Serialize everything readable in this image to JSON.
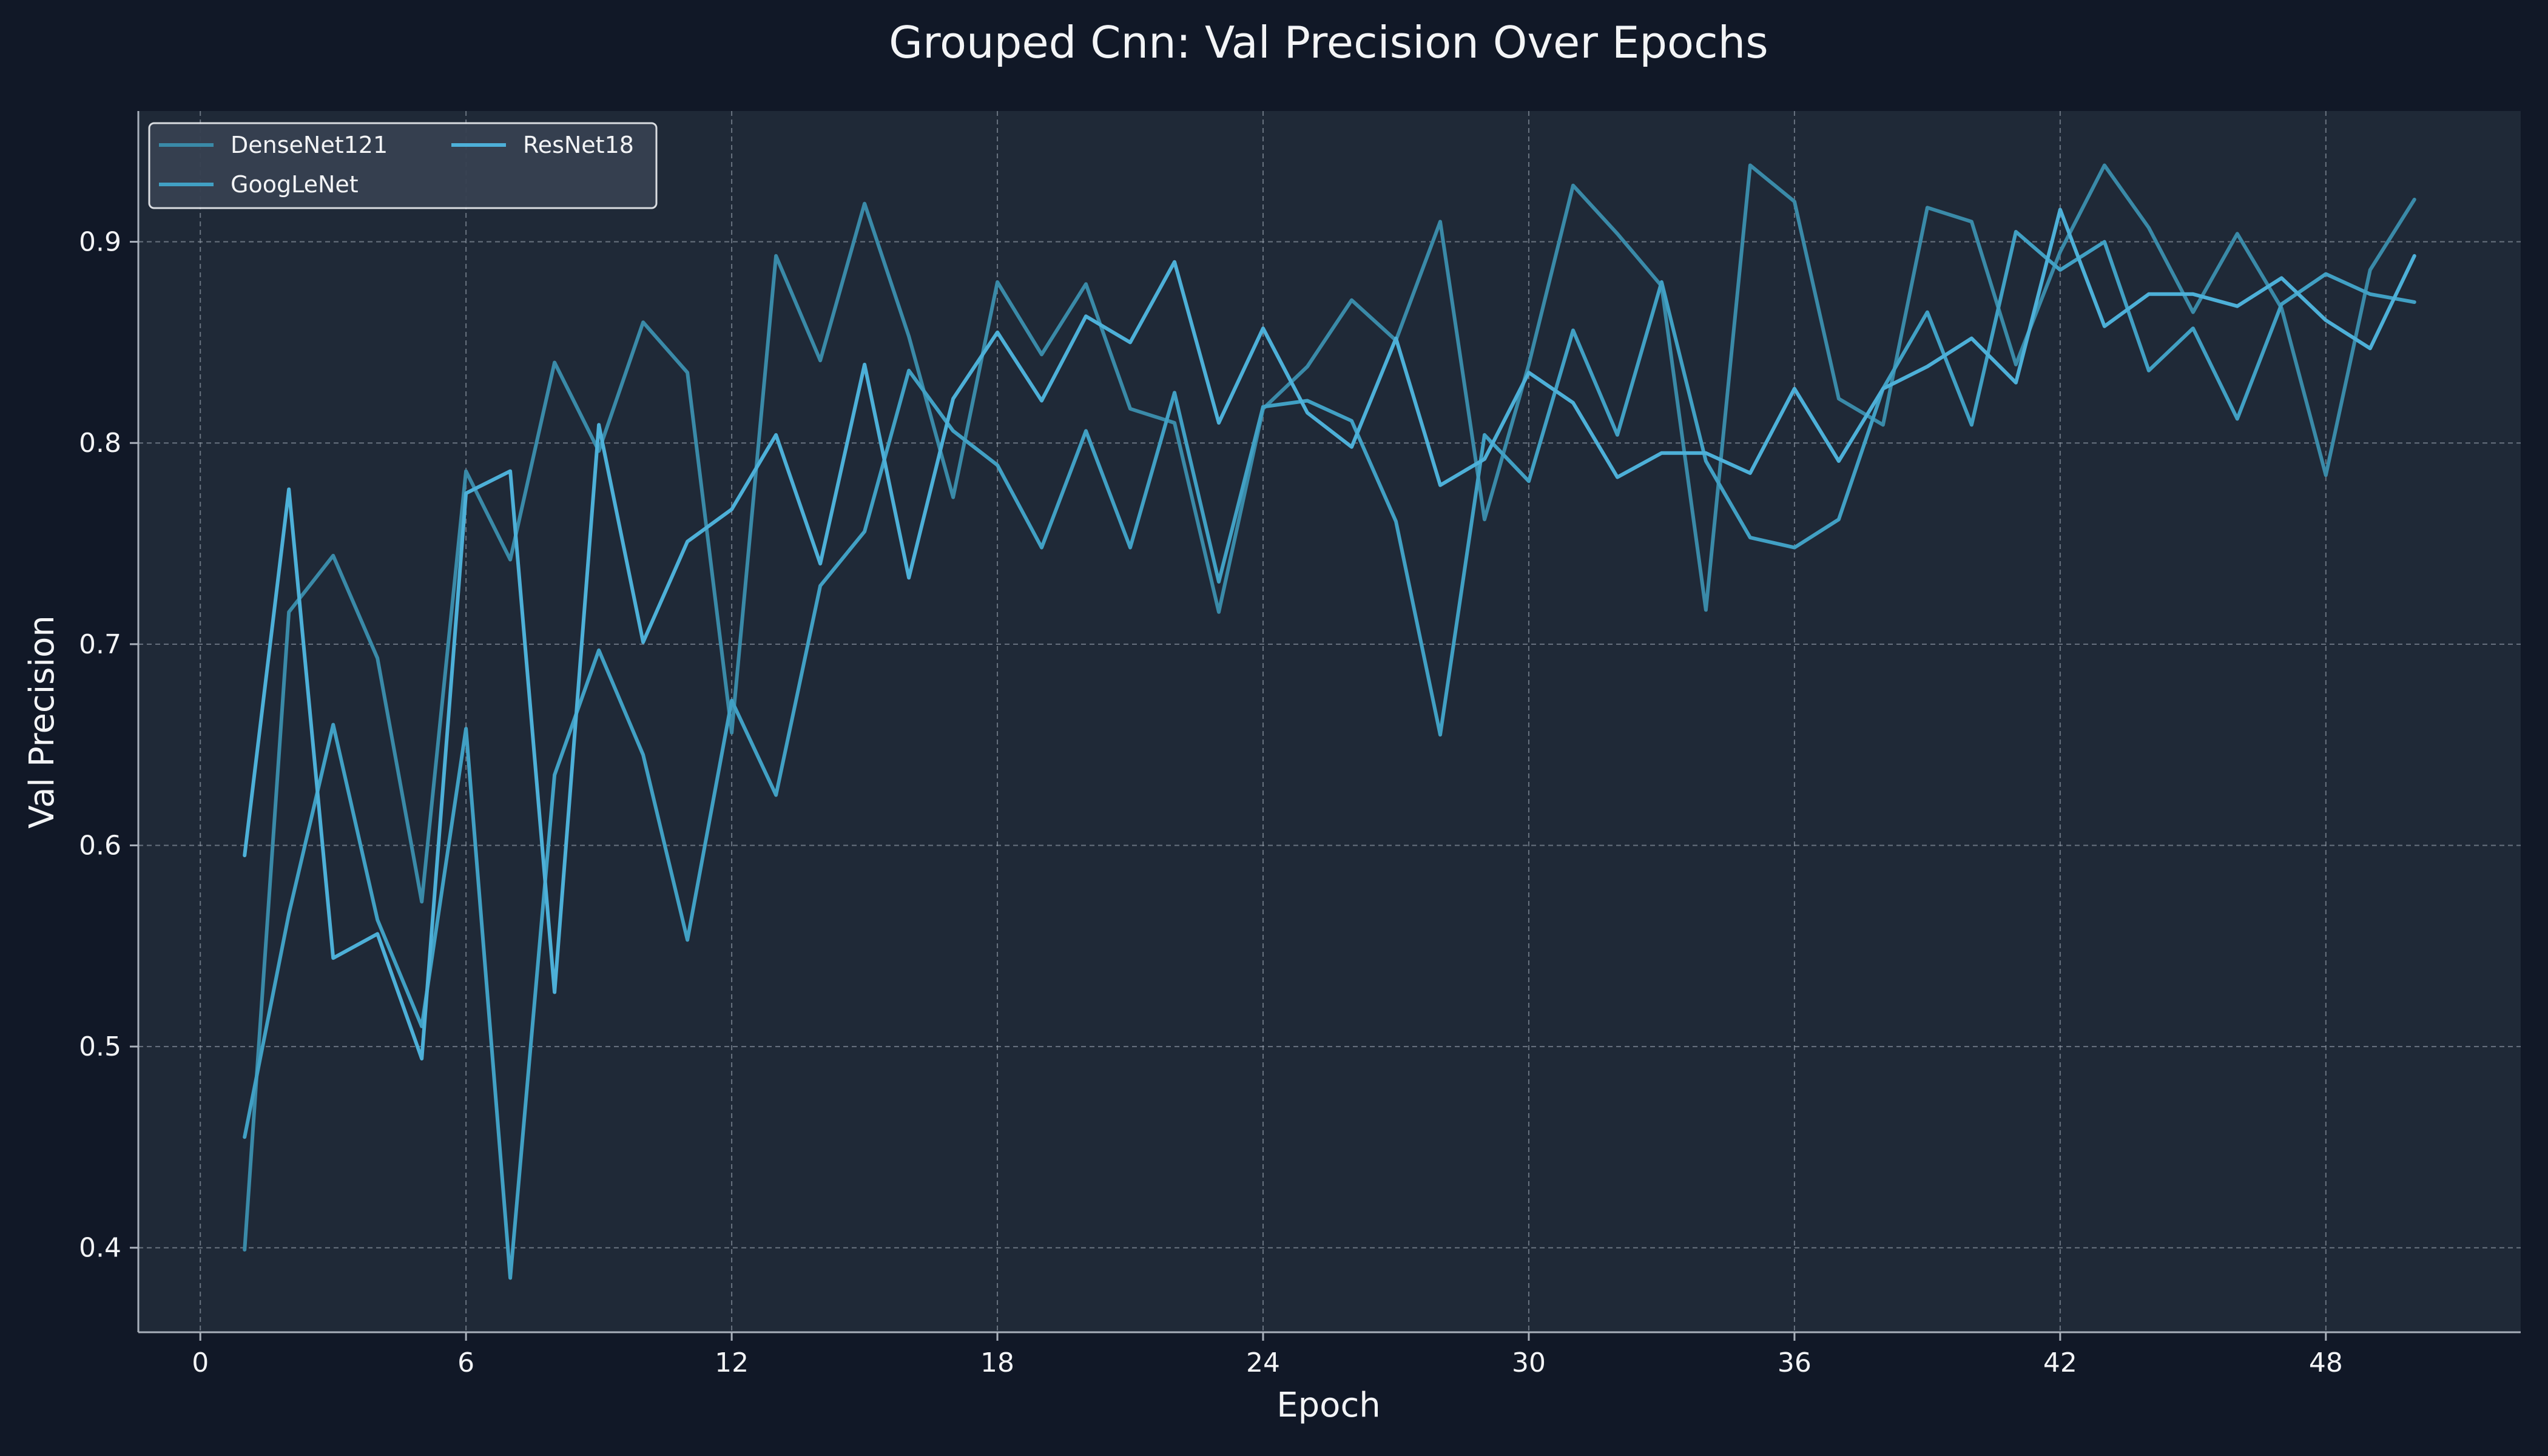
{
  "colors": {
    "figure_bg": "#111827",
    "plot_bg": "#1f2937",
    "grid": "#9aa3af",
    "axis": "#a9b0bb",
    "text": "#f3f4f6",
    "legend_bg": "#374151",
    "legend_border": "#e5e7eb"
  },
  "chart_data": {
    "type": "line",
    "title": "Grouped Cnn: Val Precision Over Epochs",
    "xlabel": "Epoch",
    "ylabel": "Val Precision",
    "xlim": [
      -1.4,
      52.4
    ],
    "ylim": [
      0.358,
      0.965
    ],
    "xticks": [
      0,
      6,
      12,
      18,
      24,
      30,
      36,
      42,
      48
    ],
    "yticks": [
      0.4,
      0.5,
      0.6,
      0.7,
      0.8,
      0.9
    ],
    "ytick_labels": [
      "0.4",
      "0.5",
      "0.6",
      "0.7",
      "0.8",
      "0.9"
    ],
    "grid": true,
    "legend": {
      "position": "top-left",
      "columns": 2
    },
    "x": [
      1,
      2,
      3,
      4,
      5,
      6,
      7,
      8,
      9,
      10,
      11,
      12,
      13,
      14,
      15,
      16,
      17,
      18,
      19,
      20,
      21,
      22,
      23,
      24,
      25,
      26,
      27,
      28,
      29,
      30,
      31,
      32,
      33,
      34,
      35,
      36,
      37,
      38,
      39,
      40,
      41,
      42,
      43,
      44,
      45,
      46,
      47,
      48,
      49,
      50
    ],
    "series": [
      {
        "name": "DenseNet121",
        "color": "#3a8aa8",
        "values": [
          0.399,
          0.716,
          0.744,
          0.693,
          0.572,
          0.786,
          0.742,
          0.84,
          0.796,
          0.86,
          0.835,
          0.656,
          0.893,
          0.841,
          0.919,
          0.853,
          0.773,
          0.88,
          0.844,
          0.879,
          0.817,
          0.81,
          0.716,
          0.817,
          0.838,
          0.871,
          0.851,
          0.91,
          0.762,
          0.839,
          0.928,
          0.904,
          0.878,
          0.717,
          0.938,
          0.92,
          0.822,
          0.809,
          0.917,
          0.91,
          0.839,
          0.895,
          0.938,
          0.907,
          0.865,
          0.904,
          0.867,
          0.784,
          0.886,
          0.921
        ]
      },
      {
        "name": "GoogLeNet",
        "color": "#41a0c4",
        "values": [
          0.455,
          0.566,
          0.66,
          0.563,
          0.51,
          0.658,
          0.385,
          0.635,
          0.697,
          0.645,
          0.553,
          0.672,
          0.625,
          0.729,
          0.756,
          0.836,
          0.806,
          0.789,
          0.748,
          0.806,
          0.748,
          0.825,
          0.731,
          0.818,
          0.821,
          0.811,
          0.761,
          0.655,
          0.804,
          0.781,
          0.856,
          0.804,
          0.88,
          0.791,
          0.753,
          0.748,
          0.762,
          0.827,
          0.865,
          0.809,
          0.905,
          0.886,
          0.9,
          0.836,
          0.857,
          0.812,
          0.869,
          0.884,
          0.874,
          0.87
        ]
      },
      {
        "name": "ResNet18",
        "color": "#4db0d8",
        "values": [
          0.595,
          0.777,
          0.544,
          0.556,
          0.494,
          0.775,
          0.786,
          0.527,
          0.809,
          0.701,
          0.751,
          0.767,
          0.804,
          0.74,
          0.839,
          0.733,
          0.822,
          0.855,
          0.821,
          0.863,
          0.85,
          0.89,
          0.81,
          0.857,
          0.815,
          0.798,
          0.852,
          0.779,
          0.792,
          0.835,
          0.82,
          0.783,
          0.795,
          0.795,
          0.785,
          0.827,
          0.791,
          0.827,
          0.838,
          0.852,
          0.83,
          0.916,
          0.858,
          0.874,
          0.874,
          0.868,
          0.882,
          0.861,
          0.847,
          0.893
        ]
      }
    ]
  }
}
